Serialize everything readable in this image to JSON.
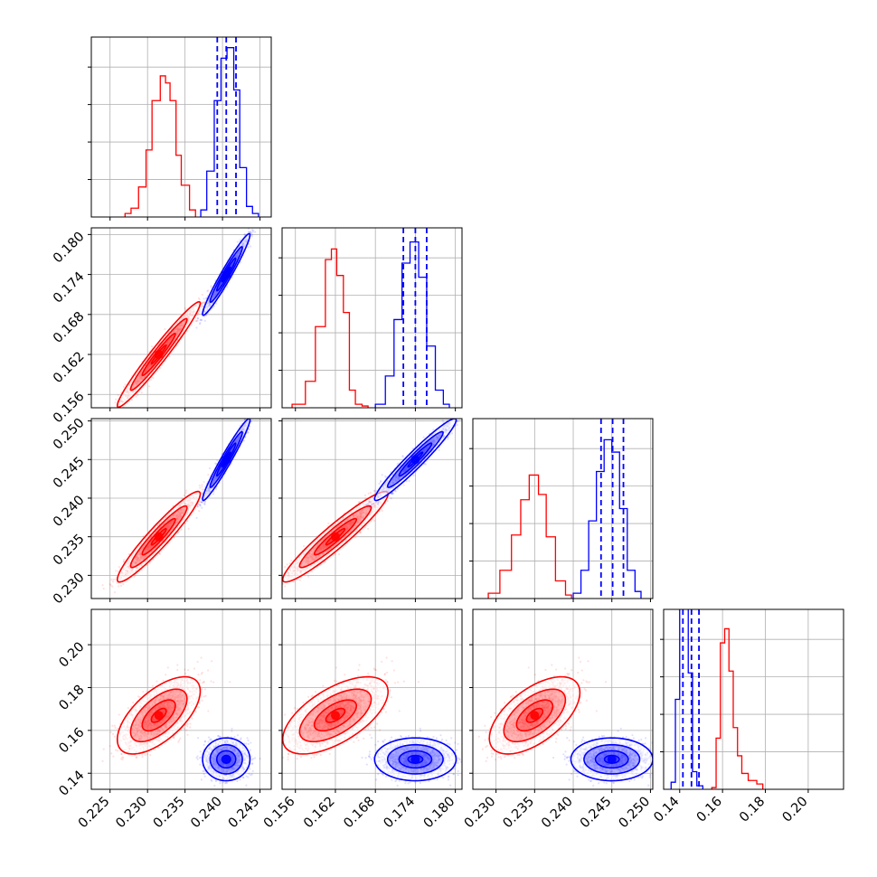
{
  "chart_data": {
    "type": "corner",
    "grid": true,
    "colors": {
      "series_a": "#ff0000",
      "series_b": "#0000ff"
    },
    "series": [
      {
        "color": "#ff0000",
        "means": [
          0.2315,
          0.162,
          0.235,
          0.167
        ],
        "cov": [
          [
            4.9e-06,
            6.8e-06,
            4.9e-06,
            1e-05
          ],
          [
            6.8e-06,
            1e-05,
            7e-06,
            1.4e-05
          ],
          [
            4.9e-06,
            7e-06,
            5.5e-06,
            1e-05
          ],
          [
            1e-05,
            1.4e-05,
            1e-05,
            5.2e-05
          ]
        ],
        "hist": [
          [
            0.227,
            0.2,
            0.2278,
            0.5,
            0.2288,
            1.7,
            0.2298,
            3.8,
            0.2306,
            6.6,
            0.2317,
            8.0,
            0.2324,
            7.6,
            0.233,
            6.6,
            0.2338,
            3.5,
            0.2345,
            1.8,
            0.2356,
            0.4
          ],
          [
            0.1555,
            0.2,
            0.1575,
            1.5,
            0.159,
            4.6,
            0.1605,
            8.4,
            0.1614,
            9.0,
            0.1622,
            7.5,
            0.1632,
            5.4,
            0.1641,
            1.0,
            0.165,
            0.2,
            0.166,
            0.1
          ],
          [
            0.229,
            0.3,
            0.2305,
            1.6,
            0.232,
            3.6,
            0.2332,
            5.6,
            0.2343,
            7.0,
            0.2355,
            5.9,
            0.2365,
            3.5,
            0.2377,
            1.0,
            0.239,
            0.2
          ],
          [
            0.155,
            0.1,
            0.157,
            2.9,
            0.159,
            8.3,
            0.161,
            9.1,
            0.163,
            6.7,
            0.165,
            3.5,
            0.167,
            1.9,
            0.169,
            0.9,
            0.172,
            0.5,
            0.176,
            0.3
          ]
        ]
      },
      {
        "color": "#0000ff",
        "means": [
          0.2405,
          0.174,
          0.245,
          0.1465
        ],
        "cov": [
          [
            1.6e-06,
            3e-06,
            2.6e-06,
            0.0
          ],
          [
            3e-06,
            6e-06,
            5e-06,
            0.0
          ],
          [
            2.6e-06,
            5e-06,
            4.5e-06,
            0.0
          ],
          [
            0.0,
            0.0,
            0.0,
            1.6e-05
          ]
        ],
        "hist": [
          [
            0.2371,
            0.4,
            0.2379,
            2.6,
            0.2389,
            6.6,
            0.2398,
            9.0,
            0.2406,
            9.6,
            0.2415,
            7.2,
            0.2423,
            2.8,
            0.2432,
            0.6,
            0.244,
            0.2
          ],
          [
            0.168,
            0.2,
            0.1695,
            1.8,
            0.1708,
            5.0,
            0.172,
            8.2,
            0.1732,
            9.4,
            0.1745,
            7.4,
            0.1757,
            3.5,
            0.177,
            1.0,
            0.1782,
            0.2
          ],
          [
            0.24,
            0.3,
            0.241,
            1.6,
            0.242,
            4.4,
            0.243,
            7.2,
            0.244,
            9.0,
            0.245,
            8.3,
            0.246,
            5.1,
            0.247,
            1.6,
            0.248,
            0.4
          ],
          [
            0.136,
            0.4,
            0.138,
            5.1,
            0.14,
            12.2,
            0.142,
            12.6,
            0.144,
            6.6,
            0.146,
            1.0,
            0.148,
            0.2
          ]
        ]
      }
    ],
    "truth_lines_series_b": [
      [
        0.2393,
        0.2405,
        0.2418
      ],
      [
        0.1722,
        0.174,
        0.1757
      ],
      [
        0.2436,
        0.2451,
        0.2465
      ],
      [
        0.1415,
        0.1455,
        0.149
      ]
    ],
    "axes": [
      {
        "range": [
          0.2225,
          0.2465
        ],
        "ticks": [
          0.225,
          0.23,
          0.235,
          0.24,
          0.245
        ],
        "tick_labels": [
          "0.225",
          "0.230",
          "0.235",
          "0.240",
          "0.245"
        ]
      },
      {
        "range": [
          0.154,
          0.181
        ],
        "ticks": [
          0.156,
          0.162,
          0.168,
          0.174,
          0.18
        ],
        "tick_labels": [
          "0.156",
          "0.162",
          "0.168",
          "0.174",
          "0.180"
        ]
      },
      {
        "range": [
          0.227,
          0.2503
        ],
        "ticks": [
          0.23,
          0.235,
          0.24,
          0.245,
          0.25
        ],
        "tick_labels": [
          "0.230",
          "0.235",
          "0.240",
          "0.245",
          "0.250"
        ]
      },
      {
        "range": [
          0.1325,
          0.2165
        ],
        "ticks": [
          0.14,
          0.16,
          0.18,
          0.2
        ],
        "tick_labels": [
          "0.14",
          "0.16",
          "0.18",
          "0.20"
        ]
      }
    ],
    "title": "",
    "xlabel": "",
    "ylabel": ""
  }
}
